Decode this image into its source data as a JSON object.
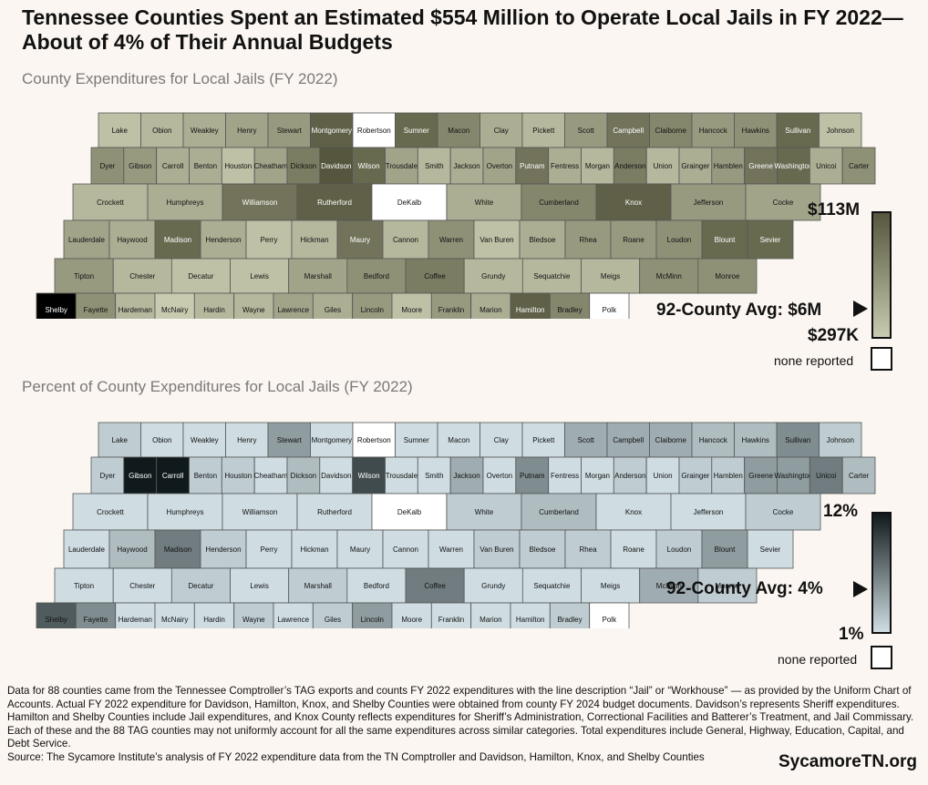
{
  "title": "Tennessee Counties Spent an Estimated $554 Million to Operate Local Jails in FY 2022—About of 4% of Their Annual Budgets",
  "map1": {
    "subtitle": "County Expenditures for Local Jails (FY 2022)",
    "legend_max": "$113M",
    "legend_avg": "92-County Avg: $6M",
    "legend_min": "$297K",
    "none_label": "none reported",
    "ramp": [
      "#55563d",
      "#c8cbb0"
    ],
    "none_color": "#ffffff"
  },
  "map2": {
    "subtitle": "Percent of County Expenditures for Local Jails (FY 2022)",
    "legend_max": "12%",
    "legend_avg": "92-County Avg: 4%",
    "legend_min": "1%",
    "none_label": "none reported",
    "ramp": [
      "#101a1c",
      "#cfdde2"
    ],
    "none_color": "#ffffff"
  },
  "counties": [
    {
      "name": "Lake",
      "v1": 0.55,
      "v2": 0.55
    },
    {
      "name": "Obion",
      "v1": 0.5,
      "v2": 0.75
    },
    {
      "name": "Weakley",
      "v1": 0.45,
      "v2": 0.75
    },
    {
      "name": "Henry",
      "v1": 0.4,
      "v2": 0.7
    },
    {
      "name": "Stewart",
      "v1": 0.35,
      "v2": 0.4
    },
    {
      "name": "Montgomery",
      "v1": 0.05,
      "v2": 0.65
    },
    {
      "name": "Robertson",
      "v1": null,
      "v2": null
    },
    {
      "name": "Sumner",
      "v1": 0.1,
      "v2": 0.65
    },
    {
      "name": "Macon",
      "v1": 0.25,
      "v2": 0.65
    },
    {
      "name": "Clay",
      "v1": 0.45,
      "v2": 0.65
    },
    {
      "name": "Pickett",
      "v1": 0.5,
      "v2": 0.7
    },
    {
      "name": "Scott",
      "v1": 0.35,
      "v2": 0.45
    },
    {
      "name": "Campbell",
      "v1": 0.15,
      "v2": 0.45
    },
    {
      "name": "Claiborne",
      "v1": 0.25,
      "v2": 0.45
    },
    {
      "name": "Hancock",
      "v1": 0.35,
      "v2": 0.5
    },
    {
      "name": "Hawkins",
      "v1": 0.3,
      "v2": 0.5
    },
    {
      "name": "Sullivan",
      "v1": 0.1,
      "v2": 0.35
    },
    {
      "name": "Johnson",
      "v1": 0.55,
      "v2": 0.55
    },
    {
      "name": "Dyer",
      "v1": 0.3,
      "v2": 0.55
    },
    {
      "name": "Gibson",
      "v1": 0.35,
      "v2": 0.0
    },
    {
      "name": "Carroll",
      "v1": 0.45,
      "v2": 0.0
    },
    {
      "name": "Benton",
      "v1": 0.45,
      "v2": 0.55
    },
    {
      "name": "Houston",
      "v1": 0.55,
      "v2": 0.55
    },
    {
      "name": "Cheatham",
      "v1": 0.4,
      "v2": 0.6
    },
    {
      "name": "Dickson",
      "v1": 0.2,
      "v2": 0.5
    },
    {
      "name": "Davidson",
      "v1": 0.0,
      "v2": 0.8
    },
    {
      "name": "Wilson",
      "v1": 0.1,
      "v2": 0.15
    },
    {
      "name": "Trousdale",
      "v1": 0.4,
      "v2": 0.6
    },
    {
      "name": "Smith",
      "v1": 0.5,
      "v2": 0.75
    },
    {
      "name": "Jackson",
      "v1": 0.45,
      "v2": 0.45
    },
    {
      "name": "Overton",
      "v1": 0.4,
      "v2": 0.6
    },
    {
      "name": "Putnam",
      "v1": 0.15,
      "v2": 0.35
    },
    {
      "name": "Fentress",
      "v1": 0.45,
      "v2": 0.6
    },
    {
      "name": "Morgan",
      "v1": 0.5,
      "v2": 0.6
    },
    {
      "name": "Anderson",
      "v1": 0.2,
      "v2": 0.55
    },
    {
      "name": "Union",
      "v1": 0.5,
      "v2": 0.75
    },
    {
      "name": "Grainger",
      "v1": 0.45,
      "v2": 0.55
    },
    {
      "name": "Hamblen",
      "v1": 0.35,
      "v2": 0.55
    },
    {
      "name": "Greene",
      "v1": 0.15,
      "v2": 0.4
    },
    {
      "name": "Washington",
      "v1": 0.1,
      "v2": 0.4
    },
    {
      "name": "Unicoi",
      "v1": 0.45,
      "v2": 0.3
    },
    {
      "name": "Carter",
      "v1": 0.3,
      "v2": 0.5
    },
    {
      "name": "Crockett",
      "v1": 0.5,
      "v2": 0.85
    },
    {
      "name": "Humphreys",
      "v1": 0.45,
      "v2": 0.6
    },
    {
      "name": "Williamson",
      "v1": 0.15,
      "v2": 0.85
    },
    {
      "name": "Rutherford",
      "v1": 0.05,
      "v2": 0.7
    },
    {
      "name": "DeKalb",
      "v1": null,
      "v2": null
    },
    {
      "name": "White",
      "v1": 0.45,
      "v2": 0.55
    },
    {
      "name": "Cumberland",
      "v1": 0.25,
      "v2": 0.5
    },
    {
      "name": "Knox",
      "v1": 0.05,
      "v2": 0.85
    },
    {
      "name": "Jefferson",
      "v1": 0.35,
      "v2": 0.65
    },
    {
      "name": "Cocke",
      "v1": 0.4,
      "v2": 0.55
    },
    {
      "name": "Lauderdale",
      "v1": 0.4,
      "v2": 0.6
    },
    {
      "name": "Haywood",
      "v1": 0.45,
      "v2": 0.5
    },
    {
      "name": "Madison",
      "v1": 0.1,
      "v2": 0.3
    },
    {
      "name": "Henderson",
      "v1": 0.45,
      "v2": 0.55
    },
    {
      "name": "Perry",
      "v1": 0.55,
      "v2": 0.65
    },
    {
      "name": "Hickman",
      "v1": 0.5,
      "v2": 0.75
    },
    {
      "name": "Maury",
      "v1": 0.15,
      "v2": 0.7
    },
    {
      "name": "Cannon",
      "v1": 0.5,
      "v2": 0.6
    },
    {
      "name": "Warren",
      "v1": 0.3,
      "v2": 0.6
    },
    {
      "name": "Van Buren",
      "v1": 0.55,
      "v2": 0.55
    },
    {
      "name": "Bledsoe",
      "v1": 0.45,
      "v2": 0.55
    },
    {
      "name": "Rhea",
      "v1": 0.35,
      "v2": 0.55
    },
    {
      "name": "Roane",
      "v1": 0.35,
      "v2": 0.6
    },
    {
      "name": "Loudon",
      "v1": 0.3,
      "v2": 0.55
    },
    {
      "name": "Blount",
      "v1": 0.1,
      "v2": 0.4
    },
    {
      "name": "Sevier",
      "v1": 0.1,
      "v2": 0.7
    },
    {
      "name": "Tipton",
      "v1": 0.35,
      "v2": 0.65
    },
    {
      "name": "Chester",
      "v1": 0.5,
      "v2": 0.6
    },
    {
      "name": "Decatur",
      "v1": 0.55,
      "v2": 0.55
    },
    {
      "name": "Lewis",
      "v1": 0.55,
      "v2": 0.6
    },
    {
      "name": "Marshall",
      "v1": 0.4,
      "v2": 0.55
    },
    {
      "name": "Bedford",
      "v1": 0.3,
      "v2": 0.65
    },
    {
      "name": "Coffee",
      "v1": 0.2,
      "v2": 0.3
    },
    {
      "name": "Grundy",
      "v1": 0.5,
      "v2": 0.6
    },
    {
      "name": "Sequatchie",
      "v1": 0.5,
      "v2": 0.6
    },
    {
      "name": "Meigs",
      "v1": 0.5,
      "v2": 0.6
    },
    {
      "name": "McMinn",
      "v1": 0.3,
      "v2": 0.45
    },
    {
      "name": "Monroe",
      "v1": 0.3,
      "v2": 0.55
    },
    {
      "name": "Shelby",
      "v1": -0.2,
      "v2": 0.2
    },
    {
      "name": "Fayette",
      "v1": 0.3,
      "v2": 0.35
    },
    {
      "name": "Hardeman",
      "v1": 0.5,
      "v2": 0.75
    },
    {
      "name": "McNairy",
      "v1": 0.6,
      "v2": 0.9
    },
    {
      "name": "Hardin",
      "v1": 0.5,
      "v2": 0.6
    },
    {
      "name": "Wayne",
      "v1": 0.5,
      "v2": 0.55
    },
    {
      "name": "Lawrence",
      "v1": 0.4,
      "v2": 0.6
    },
    {
      "name": "Giles",
      "v1": 0.45,
      "v2": 0.55
    },
    {
      "name": "Lincoln",
      "v1": 0.35,
      "v2": 0.4
    },
    {
      "name": "Moore",
      "v1": 0.55,
      "v2": 0.7
    },
    {
      "name": "Franklin",
      "v1": 0.35,
      "v2": 0.6
    },
    {
      "name": "Marion",
      "v1": 0.45,
      "v2": 0.75
    },
    {
      "name": "Hamilton",
      "v1": 0.05,
      "v2": 0.6
    },
    {
      "name": "Bradley",
      "v1": 0.25,
      "v2": 0.55
    },
    {
      "name": "Polk",
      "v1": null,
      "v2": null
    }
  ],
  "notes": "Data for 88 counties came from the Tennessee Comptroller’s TAG exports and counts FY 2022 expenditures with the line description “Jail” or “Workhouse” — as provided by the Uniform Chart of Accounts. Actual FY 2022 expenditure for Davidson, Hamilton, Knox, and Shelby Counties were obtained from county FY 2024 budget documents. Davidson’s represents Sheriff expenditures. Hamilton and Shelby Counties include Jail expenditures, and Knox County reflects expenditures for Sheriff’s Administration, Correctional Facilities and Batterer’s Treatment, and Jail Commissary. Each of these and the 88 TAG counties may not uniformly account for all the same expenditures across similar categories. Total expenditures include General, Highway, Education, Capital, and Debt Service.",
  "source": "Source: The Sycamore Institute’s analysis of FY 2022 expenditure data from the TN Comptroller and Davidson, Hamilton, Knox, and Shelby Counties",
  "brand": "SycamoreTN.org"
}
